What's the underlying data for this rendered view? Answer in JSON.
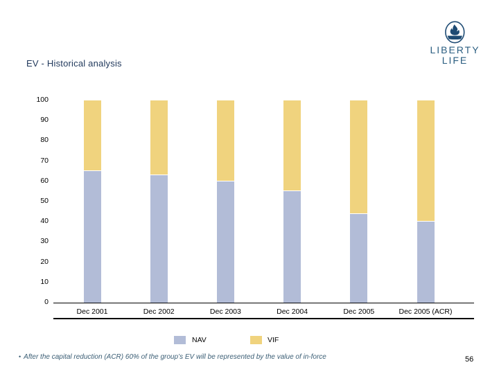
{
  "slide": {
    "title": "EV - Historical analysis",
    "page_number": "56",
    "footnote_bullet": "•",
    "footnote": "After the capital reduction (ACR) 60% of the group’s EV will be represented by the value of in-force"
  },
  "logo": {
    "line1": "LIBERTY",
    "line2": "LIFE",
    "color": "#1d4a73",
    "icon": "flame-in-oval-icon"
  },
  "chart_data": {
    "type": "bar",
    "stacked": true,
    "title": "",
    "xlabel": "",
    "ylabel": "",
    "categories": [
      "Dec 2001",
      "Dec 2002",
      "Dec 2003",
      "Dec 2004",
      "Dec 2005",
      "Dec 2005 (ACR)"
    ],
    "series": [
      {
        "name": "NAV",
        "color": "#b2bcd7",
        "values": [
          65,
          63,
          60,
          55,
          44,
          40
        ]
      },
      {
        "name": "VIF",
        "color": "#f0d37e",
        "values": [
          35,
          37,
          40,
          45,
          56,
          60
        ]
      }
    ],
    "ylim": [
      0,
      100
    ],
    "ytick_step": 10,
    "grid": false,
    "legend_position": "bottom"
  }
}
